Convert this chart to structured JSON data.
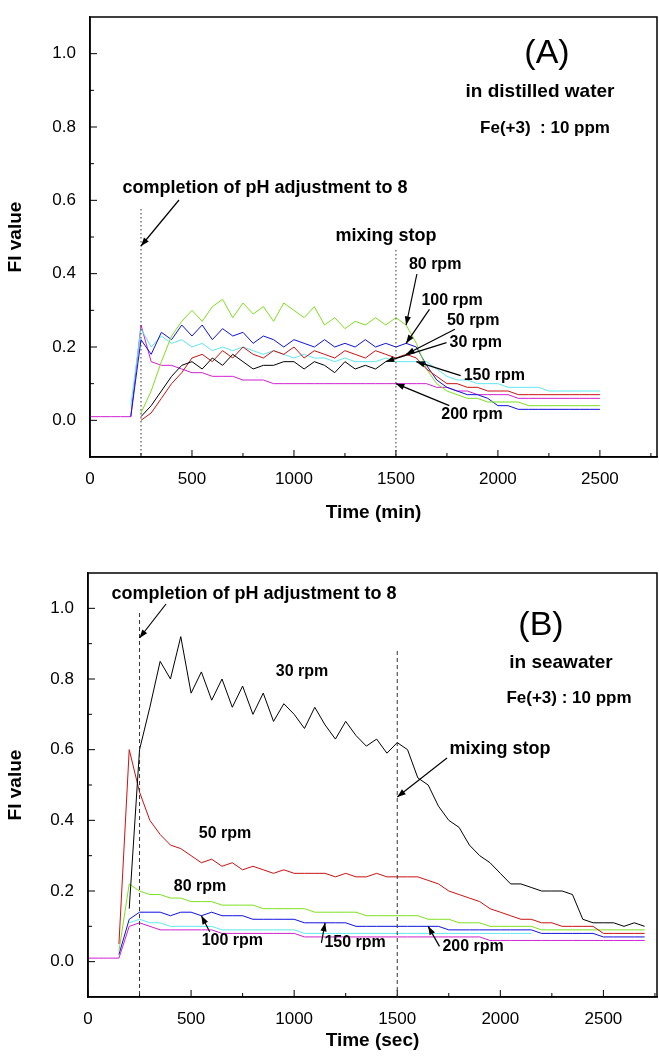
{
  "chart_data": [
    {
      "type": "line",
      "xlabel": "Time (min)",
      "ylabel": "FI value",
      "xlim": [
        0,
        2780
      ],
      "ylim": [
        -0.1,
        1.1
      ],
      "marker": "none",
      "xticks": [
        0,
        {
          "value": 250,
          "label": null
        },
        500,
        {
          "value": 750,
          "label": null
        },
        1000,
        {
          "value": 1250,
          "label": null
        },
        1500,
        {
          "value": 1750,
          "label": null
        },
        2000,
        {
          "value": 2250,
          "label": null
        },
        2500,
        {
          "value": 2750,
          "label": null
        }
      ],
      "yticks": [
        {
          "value": 0,
          "label": "0.0"
        },
        {
          "value": 0.1,
          "label": null
        },
        {
          "value": 0.2,
          "label": "0.2"
        },
        {
          "value": 0.3,
          "label": null
        },
        {
          "value": 0.4,
          "label": "0.4"
        },
        {
          "value": 0.5,
          "label": null
        },
        {
          "value": 0.6,
          "label": "0.6"
        },
        {
          "value": 0.7,
          "label": null
        },
        {
          "value": 0.8,
          "label": "0.8"
        },
        {
          "value": 0.9,
          "label": null
        },
        {
          "value": 1.0,
          "label": "1.0"
        }
      ],
      "x": [
        0,
        50,
        100,
        150,
        200,
        250,
        300,
        350,
        400,
        450,
        500,
        550,
        600,
        650,
        700,
        750,
        800,
        850,
        900,
        950,
        1000,
        1050,
        1100,
        1150,
        1200,
        1250,
        1300,
        1350,
        1400,
        1450,
        1500,
        1550,
        1600,
        1650,
        1700,
        1750,
        1800,
        1850,
        1900,
        1950,
        2000,
        2050,
        2100,
        2150,
        2200,
        2250,
        2300,
        2350,
        2400,
        2450,
        2500
      ],
      "series": [
        {
          "color": "#000000",
          "values": [
            null,
            null,
            null,
            null,
            null,
            0.01,
            0.04,
            0.08,
            0.12,
            0.15,
            0.16,
            0.14,
            0.17,
            0.15,
            0.18,
            0.16,
            0.14,
            0.15,
            0.15,
            0.16,
            0.16,
            0.14,
            0.16,
            0.15,
            0.13,
            0.16,
            0.14,
            0.15,
            0.14,
            0.16,
            null,
            null,
            null,
            null,
            null,
            null,
            null,
            null,
            null,
            null,
            null,
            null,
            null,
            null,
            null,
            null,
            null,
            null,
            null,
            null,
            null
          ]
        },
        {
          "color": "#cc1111",
          "values": [
            null,
            null,
            null,
            null,
            null,
            0.0,
            0.02,
            0.06,
            0.1,
            0.13,
            0.17,
            0.18,
            0.16,
            0.19,
            0.17,
            0.2,
            0.18,
            0.17,
            0.19,
            0.18,
            0.2,
            0.17,
            0.19,
            0.18,
            0.17,
            0.19,
            0.18,
            0.17,
            0.19,
            0.18,
            0.17,
            0.18,
            0.17,
            0.14,
            0.12,
            0.1,
            0.1,
            0.09,
            0.09,
            0.08,
            0.08,
            0.08,
            0.07,
            0.07,
            0.07,
            0.07,
            0.07,
            0.07,
            0.07,
            0.07,
            0.07
          ]
        },
        {
          "color": "#7fe01f",
          "values": [
            null,
            null,
            null,
            null,
            null,
            0.02,
            0.08,
            0.16,
            0.23,
            0.27,
            0.3,
            0.27,
            0.31,
            0.33,
            0.28,
            0.32,
            0.29,
            0.31,
            0.27,
            0.32,
            0.3,
            0.28,
            0.31,
            0.26,
            0.28,
            0.25,
            0.27,
            0.26,
            0.28,
            0.26,
            0.28,
            0.26,
            0.21,
            0.14,
            0.1,
            0.08,
            0.07,
            0.06,
            0.06,
            0.05,
            0.05,
            0.05,
            0.05,
            0.04,
            0.04,
            0.04,
            0.04,
            0.04,
            0.04,
            0.04,
            0.04
          ]
        },
        {
          "color": "#1010e0",
          "values": [
            null,
            null,
            null,
            null,
            0.01,
            0.22,
            0.18,
            0.24,
            0.22,
            0.26,
            0.23,
            0.26,
            0.22,
            0.25,
            0.23,
            0.24,
            0.21,
            0.23,
            0.22,
            0.2,
            0.22,
            0.21,
            0.2,
            0.22,
            0.2,
            0.21,
            0.2,
            0.22,
            0.2,
            0.21,
            0.2,
            0.21,
            0.2,
            0.15,
            0.11,
            0.09,
            0.08,
            0.07,
            0.07,
            0.06,
            0.04,
            0.04,
            0.03,
            0.03,
            0.03,
            0.03,
            0.03,
            0.03,
            0.03,
            0.03,
            0.03
          ]
        },
        {
          "color": "#5fe8f0",
          "values": [
            null,
            null,
            null,
            null,
            0.04,
            0.25,
            0.2,
            0.23,
            0.21,
            0.22,
            0.2,
            0.21,
            0.19,
            0.2,
            0.19,
            0.2,
            0.19,
            0.18,
            0.19,
            0.18,
            0.17,
            0.18,
            0.17,
            0.17,
            0.16,
            0.17,
            0.16,
            0.16,
            0.16,
            0.17,
            0.16,
            0.16,
            0.16,
            0.16,
            0.14,
            0.12,
            0.11,
            0.11,
            0.1,
            0.1,
            0.1,
            0.09,
            0.09,
            0.09,
            0.09,
            0.08,
            0.08,
            0.08,
            0.08,
            0.08,
            0.08
          ]
        },
        {
          "color": "#d020d0",
          "values": [
            0.01,
            0.01,
            0.01,
            0.01,
            0.01,
            0.26,
            0.16,
            0.15,
            0.15,
            0.14,
            0.13,
            0.13,
            0.12,
            0.12,
            0.12,
            0.11,
            0.11,
            0.11,
            0.1,
            0.1,
            0.1,
            0.1,
            0.1,
            0.1,
            0.1,
            0.1,
            0.1,
            0.1,
            0.1,
            0.1,
            0.1,
            0.1,
            0.1,
            0.1,
            0.09,
            0.09,
            0.08,
            0.08,
            0.07,
            0.07,
            0.07,
            0.07,
            0.06,
            0.06,
            0.06,
            0.06,
            0.06,
            0.06,
            0.06,
            0.06,
            0.06
          ]
        }
      ],
      "ref_lines": [
        {
          "axis": "x",
          "value": 250,
          "label": "completion of pH adjustment to 8",
          "line_style": "dotted"
        },
        {
          "axis": "x",
          "value": 1500,
          "label": "mixing stop",
          "line_style": "dotted"
        }
      ],
      "annotations": [
        "(A)",
        "in distilled water",
        "Fe(+3)  : 10 ppm",
        {
          "text": "80 rpm",
          "x": 1550,
          "y": 0.26
        },
        {
          "text": "100 rpm",
          "x": 1550,
          "y": 0.21
        },
        {
          "text": "50 rpm",
          "x": 1550,
          "y": 0.18
        },
        {
          "text": "30 rpm",
          "x": 1450,
          "y": 0.16
        },
        {
          "text": "150 rpm",
          "x": 1600,
          "y": 0.16
        },
        {
          "text": "200 rpm",
          "x": 1500,
          "y": 0.1
        }
      ]
    },
    {
      "type": "line",
      "xlabel": "Time (sec)",
      "ylabel": "FI value",
      "xlim": [
        0,
        2760
      ],
      "ylim": [
        -0.1,
        1.1
      ],
      "marker": "none",
      "xticks": [
        0,
        {
          "value": 250,
          "label": null
        },
        500,
        {
          "value": 750,
          "label": null
        },
        1000,
        {
          "value": 1250,
          "label": null
        },
        1500,
        {
          "value": 1750,
          "label": null
        },
        2000,
        {
          "value": 2250,
          "label": null
        },
        2500,
        {
          "value": 2750,
          "label": null
        }
      ],
      "yticks": [
        {
          "value": 0,
          "label": "0.0"
        },
        {
          "value": 0.1,
          "label": null
        },
        {
          "value": 0.2,
          "label": "0.2"
        },
        {
          "value": 0.3,
          "label": null
        },
        {
          "value": 0.4,
          "label": "0.4"
        },
        {
          "value": 0.5,
          "label": null
        },
        {
          "value": 0.6,
          "label": "0.6"
        },
        {
          "value": 0.7,
          "label": null
        },
        {
          "value": 0.8,
          "label": "0.8"
        },
        {
          "value": 0.9,
          "label": null
        },
        {
          "value": 1.0,
          "label": "1.0"
        }
      ],
      "x": [
        0,
        50,
        100,
        150,
        200,
        250,
        300,
        350,
        400,
        450,
        500,
        550,
        600,
        650,
        700,
        750,
        800,
        850,
        900,
        950,
        1000,
        1050,
        1100,
        1150,
        1200,
        1250,
        1300,
        1350,
        1400,
        1450,
        1500,
        1550,
        1600,
        1650,
        1700,
        1750,
        1800,
        1850,
        1900,
        1950,
        2000,
        2050,
        2100,
        2150,
        2200,
        2250,
        2300,
        2350,
        2400,
        2450,
        2500,
        2550,
        2600,
        2650,
        2700
      ],
      "series": [
        {
          "color": "#000000",
          "values": [
            null,
            null,
            null,
            null,
            0.15,
            0.6,
            0.72,
            0.85,
            0.8,
            0.92,
            0.76,
            0.82,
            0.74,
            0.8,
            0.72,
            0.78,
            0.7,
            0.76,
            0.68,
            0.73,
            0.7,
            0.66,
            0.72,
            0.67,
            0.63,
            0.68,
            0.64,
            0.61,
            0.63,
            0.59,
            0.62,
            0.6,
            0.52,
            0.5,
            0.44,
            0.4,
            0.38,
            0.33,
            0.3,
            0.28,
            0.25,
            0.22,
            0.22,
            0.21,
            0.2,
            0.2,
            0.2,
            0.19,
            0.12,
            0.11,
            0.11,
            0.11,
            0.1,
            0.11,
            0.1
          ]
        },
        {
          "color": "#cc1111",
          "values": [
            null,
            null,
            null,
            0.05,
            0.6,
            0.48,
            0.4,
            0.36,
            0.33,
            0.32,
            0.3,
            0.28,
            0.29,
            0.27,
            0.28,
            0.26,
            0.27,
            0.26,
            0.25,
            0.26,
            0.25,
            0.25,
            0.25,
            0.25,
            0.24,
            0.25,
            0.24,
            0.24,
            0.25,
            0.24,
            0.24,
            0.24,
            0.24,
            0.23,
            0.22,
            0.2,
            0.19,
            0.18,
            0.17,
            0.15,
            0.14,
            0.13,
            0.12,
            0.12,
            0.11,
            0.11,
            0.1,
            0.1,
            0.1,
            0.1,
            0.08,
            0.08,
            0.08,
            0.08,
            0.08
          ]
        },
        {
          "color": "#7fe01f",
          "values": [
            null,
            null,
            null,
            0.03,
            0.22,
            0.2,
            0.19,
            0.19,
            0.18,
            0.18,
            0.17,
            0.17,
            0.17,
            0.16,
            0.16,
            0.16,
            0.16,
            0.15,
            0.15,
            0.15,
            0.15,
            0.15,
            0.14,
            0.14,
            0.14,
            0.14,
            0.14,
            0.13,
            0.13,
            0.13,
            0.13,
            0.13,
            0.13,
            0.12,
            0.12,
            0.12,
            0.11,
            0.11,
            0.11,
            0.1,
            0.1,
            0.1,
            0.1,
            0.1,
            0.09,
            0.09,
            0.09,
            0.09,
            0.09,
            0.09,
            0.09,
            0.09,
            0.09,
            0.09,
            0.09
          ]
        },
        {
          "color": "#1010e0",
          "values": [
            null,
            null,
            null,
            0.02,
            0.12,
            0.14,
            0.14,
            0.14,
            0.13,
            0.14,
            0.14,
            0.13,
            0.14,
            0.13,
            0.13,
            0.13,
            0.12,
            0.12,
            0.12,
            0.12,
            0.12,
            0.11,
            0.11,
            0.11,
            0.11,
            0.11,
            0.1,
            0.1,
            0.1,
            0.1,
            0.1,
            0.1,
            0.1,
            0.1,
            0.1,
            0.09,
            0.09,
            0.09,
            0.09,
            0.09,
            0.09,
            0.09,
            0.09,
            0.09,
            0.08,
            0.08,
            0.08,
            0.08,
            0.08,
            0.08,
            0.07,
            0.07,
            0.07,
            0.07,
            0.07
          ]
        },
        {
          "color": "#5fe8f0",
          "values": [
            null,
            null,
            null,
            null,
            0.11,
            0.12,
            0.11,
            0.11,
            0.1,
            0.1,
            0.1,
            0.1,
            0.1,
            0.09,
            0.09,
            0.09,
            0.09,
            0.09,
            0.09,
            0.09,
            0.09,
            0.08,
            0.08,
            0.08,
            0.08,
            0.08,
            0.08,
            0.08,
            0.08,
            0.08,
            0.08,
            0.08,
            0.08,
            0.08,
            0.08,
            0.08,
            0.08,
            0.08,
            0.08,
            0.08,
            0.08,
            0.08,
            0.08,
            0.08,
            null,
            null,
            null,
            null,
            null,
            null,
            null,
            null,
            null,
            null,
            null
          ]
        },
        {
          "color": "#d020d0",
          "values": [
            0.01,
            0.01,
            0.01,
            0.01,
            0.1,
            0.11,
            0.1,
            0.09,
            0.09,
            0.09,
            0.09,
            0.09,
            0.09,
            0.08,
            0.08,
            0.08,
            0.08,
            0.08,
            0.08,
            0.08,
            0.08,
            0.07,
            0.07,
            0.07,
            0.07,
            0.07,
            0.07,
            0.07,
            0.07,
            0.07,
            0.07,
            0.07,
            0.07,
            0.07,
            0.07,
            0.07,
            0.07,
            0.07,
            0.07,
            0.06,
            0.06,
            0.06,
            0.06,
            0.06,
            0.06,
            0.06,
            0.06,
            0.06,
            0.06,
            0.06,
            0.06,
            0.06,
            0.06,
            0.06,
            0.06
          ]
        }
      ],
      "ref_lines": [
        {
          "axis": "x",
          "value": 250,
          "label": "completion of pH adjustment to 8",
          "line_style": "dashed"
        },
        {
          "axis": "x",
          "value": 1500,
          "label": "mixing stop",
          "line_style": "dashed"
        }
      ],
      "annotations": [
        "(B)",
        "in seawater",
        "Fe(+3) : 10 ppm",
        "30 rpm",
        "50 rpm",
        "80 rpm",
        {
          "text": "100 rpm",
          "x": 550,
          "y": 0.13
        },
        {
          "text": "150 rpm",
          "x": 1150,
          "y": 0.11
        },
        {
          "text": "200 rpm",
          "x": 1650,
          "y": 0.1
        }
      ]
    }
  ]
}
